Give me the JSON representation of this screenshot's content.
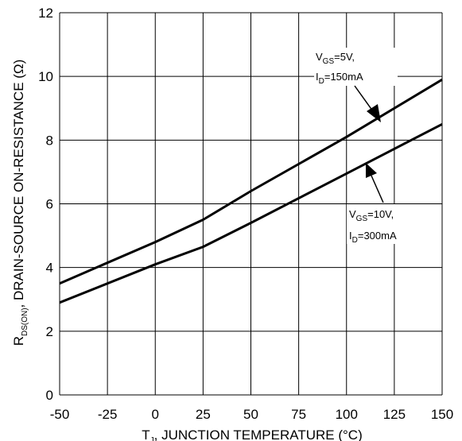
{
  "chart_data": {
    "type": "line",
    "xlabel": "T J, JUNCTION TEMPERATURE (°C)",
    "xlabel_main": "T",
    "xlabel_sub": "J",
    "xlabel_rest": ", JUNCTION TEMPERATURE (°C)",
    "ylabel": "RDS(ON), DRAIN-SOURCE ON-RESISTANCE (Ω)",
    "ylabel_main": "R",
    "ylabel_sub": "DS(ON)",
    "ylabel_rest": ", DRAIN-SOURCE ON-RESISTANCE (Ω)",
    "xlim": [
      -50,
      150
    ],
    "ylim": [
      0,
      12
    ],
    "grid": true,
    "x_ticks": [
      -50,
      -25,
      0,
      25,
      50,
      75,
      100,
      125,
      150
    ],
    "y_ticks": [
      0,
      2,
      4,
      6,
      8,
      10,
      12
    ],
    "series": [
      {
        "name": "VGS=5V, ID=150mA",
        "x": [
          -50,
          0,
          25,
          50,
          100,
          150
        ],
        "y": [
          3.5,
          4.8,
          5.5,
          6.4,
          8.1,
          9.9
        ]
      },
      {
        "name": "VGS=10V, ID=300mA",
        "x": [
          -50,
          0,
          25,
          50,
          100,
          150
        ],
        "y": [
          2.9,
          4.1,
          4.65,
          5.4,
          6.95,
          8.5
        ]
      }
    ],
    "annotations": [
      {
        "line1_main": "V",
        "line1_sub": "GS",
        "line1_rest": "=5V,",
        "line2_main": "I",
        "line2_sub": "D",
        "line2_rest": "=150mA"
      },
      {
        "line1_main": "V",
        "line1_sub": "GS",
        "line1_rest": "=10V,",
        "line2_main": "I",
        "line2_sub": "D",
        "line2_rest": "=300mA"
      }
    ]
  }
}
